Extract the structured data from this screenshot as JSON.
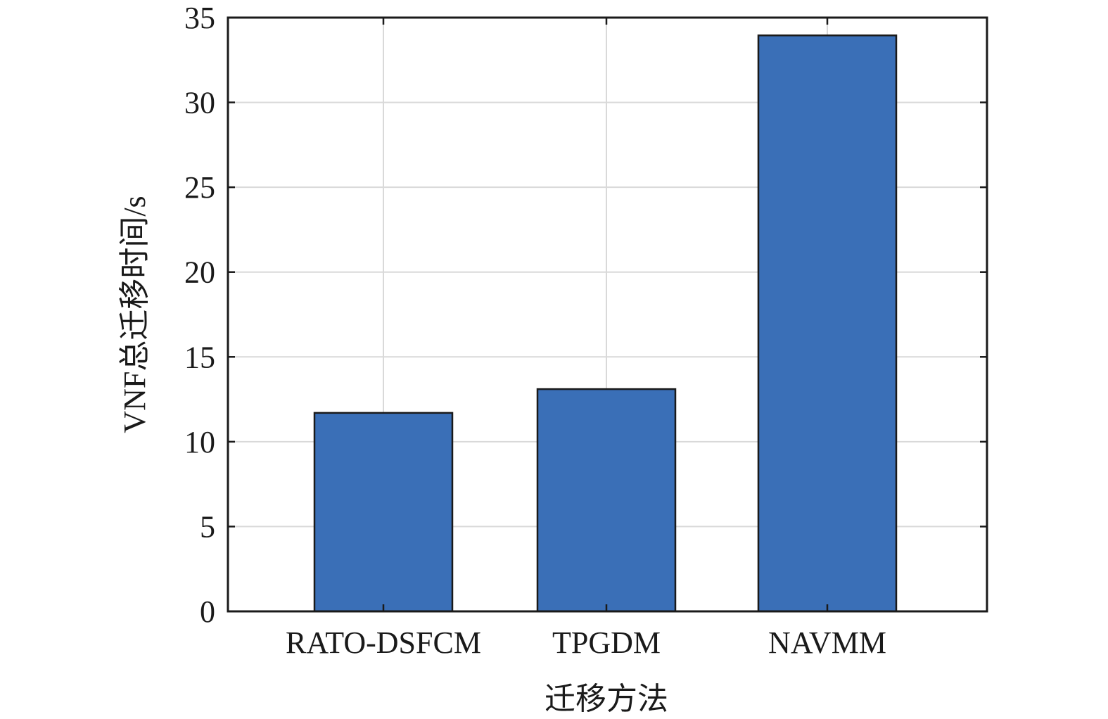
{
  "chart_data": {
    "type": "bar",
    "categories": [
      "RATO-DSFCM",
      "TPGDM",
      "NAVMM"
    ],
    "series": [
      {
        "values": [
          11.7,
          13.1,
          33.95
        ]
      }
    ],
    "title": "",
    "xlabel": "迁移方法",
    "ylabel": "VNF总迁移时间/s",
    "ylim": [
      0,
      35
    ],
    "yticks": [
      0,
      5,
      10,
      15,
      20,
      25,
      30,
      35
    ],
    "ytick_labels": [
      "0",
      "5",
      "10",
      "15",
      "20",
      "25",
      "30",
      "35"
    ],
    "grid": true,
    "colors": {
      "bar": "#3a6fb7",
      "bar_edge": "#1a1a1a",
      "grid": "#d9d9d9",
      "axis": "#1a1a1a"
    }
  }
}
